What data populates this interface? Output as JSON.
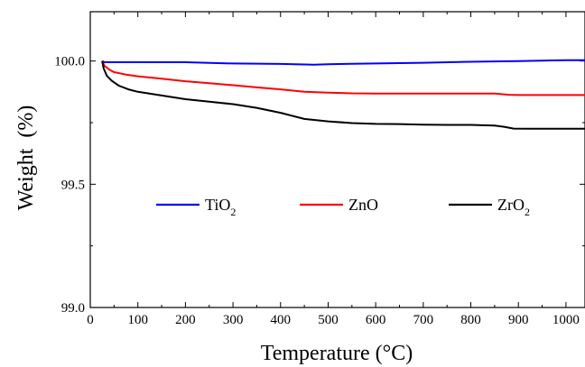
{
  "chart_data": {
    "type": "line",
    "xlabel": "Temperature (°C)",
    "ylabel": "Weight  (%)",
    "xlim": [
      0,
      1040
    ],
    "ylim": [
      99.0,
      100.2
    ],
    "xticks": [
      0,
      100,
      200,
      300,
      400,
      500,
      600,
      700,
      800,
      900,
      1000
    ],
    "yticks": [
      99.0,
      99.5,
      100.0
    ],
    "ytick_labels": [
      "99.0",
      "99.5",
      "100.0"
    ],
    "grid": false,
    "legend_placement": "center",
    "series": [
      {
        "name": "TiO2",
        "legend_main": "TiO",
        "legend_sub": "2",
        "color": "#0000ff",
        "x": [
          25,
          30,
          50,
          100,
          200,
          300,
          400,
          470,
          500,
          600,
          700,
          800,
          900,
          1000,
          1040
        ],
        "y": [
          100.0,
          99.995,
          99.995,
          99.995,
          99.995,
          99.99,
          99.988,
          99.985,
          99.987,
          99.99,
          99.993,
          99.997,
          100.0,
          100.003,
          100.003
        ]
      },
      {
        "name": "ZnO",
        "legend_main": "ZnO",
        "legend_sub": "",
        "color": "#ff0000",
        "x": [
          25,
          30,
          40,
          50,
          75,
          100,
          150,
          200,
          250,
          300,
          350,
          400,
          450,
          500,
          550,
          600,
          700,
          800,
          850,
          880,
          900,
          1000,
          1040
        ],
        "y": [
          100.0,
          99.98,
          99.965,
          99.955,
          99.945,
          99.938,
          99.928,
          99.918,
          99.91,
          99.902,
          99.893,
          99.885,
          99.875,
          99.872,
          99.869,
          99.868,
          99.868,
          99.868,
          99.868,
          99.863,
          99.862,
          99.862,
          99.862
        ]
      },
      {
        "name": "ZrO2",
        "legend_main": "ZrO",
        "legend_sub": "2",
        "color": "#000000",
        "x": [
          25,
          28,
          35,
          45,
          60,
          80,
          100,
          150,
          200,
          250,
          300,
          350,
          400,
          450,
          500,
          550,
          600,
          650,
          700,
          750,
          800,
          850,
          870,
          890,
          920,
          1000,
          1040
        ],
        "y": [
          100.0,
          99.97,
          99.94,
          99.92,
          99.9,
          99.885,
          99.875,
          99.86,
          99.845,
          99.835,
          99.825,
          99.81,
          99.79,
          99.765,
          99.755,
          99.748,
          99.745,
          99.744,
          99.742,
          99.741,
          99.741,
          99.738,
          99.733,
          99.726,
          99.725,
          99.725,
          99.725
        ]
      }
    ]
  }
}
